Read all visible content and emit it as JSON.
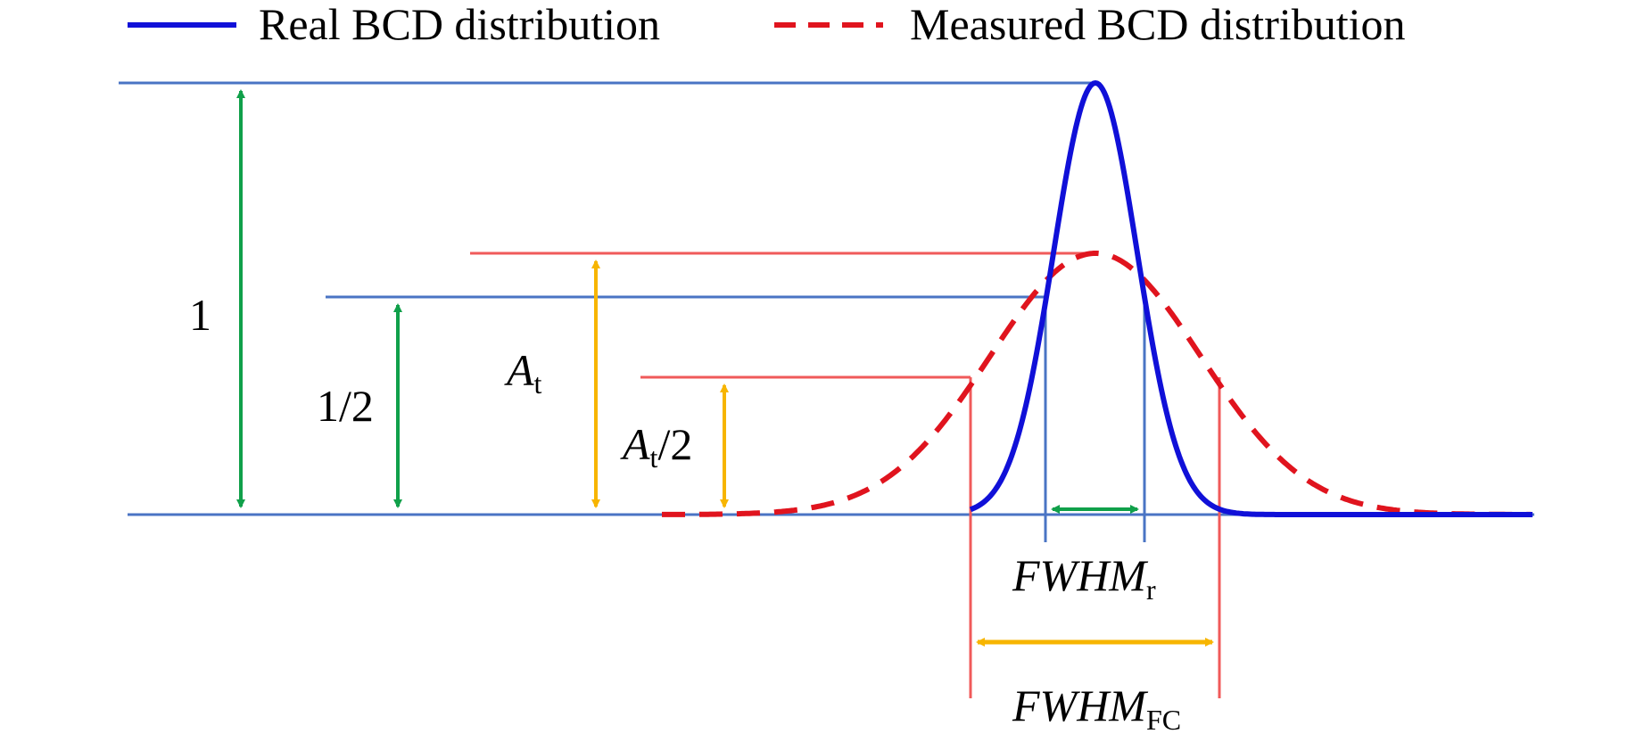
{
  "legend": {
    "real_label": "Real BCD distribution",
    "measured_label": "Measured BCD distribution"
  },
  "labels": {
    "one": "1",
    "half": "1/2",
    "at_main": "A",
    "at_sub": "t",
    "at_half_main": "A",
    "at_half_sub": "t",
    "at_half_suffix": "/2",
    "fwhm_r_main": "FWHM",
    "fwhm_r_sub": "r",
    "fwhm_fc_main": "FWHM",
    "fwhm_fc_sub": "FC"
  },
  "colors": {
    "real_curve": "#1010d8",
    "measured_curve": "#e0141e",
    "blue_guide": "#4a74c4",
    "red_guide": "#f05a5a",
    "green_arrow": "#10a04a",
    "yellow_arrow": "#f7b500"
  },
  "chart_data": {
    "type": "line",
    "series": [
      {
        "name": "Real BCD distribution",
        "peak": 1.0,
        "fwhm": "FWHM_r"
      },
      {
        "name": "Measured BCD distribution",
        "peak": "A_t",
        "fwhm": "FWHM_FC"
      }
    ],
    "levels": [
      "1",
      "1/2",
      "A_t",
      "A_t/2"
    ]
  }
}
